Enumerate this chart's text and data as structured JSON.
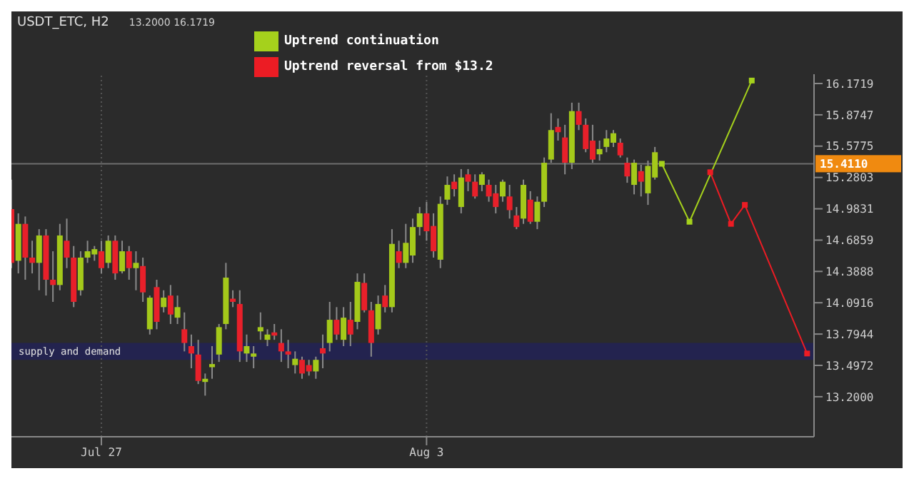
{
  "chart_data": {
    "type": "candlestick",
    "title": "USDT_ETC, H2",
    "subtitle": "13.2000 16.1719",
    "categories": [
      null,
      null,
      null,
      null,
      null,
      null,
      null,
      null,
      null,
      null,
      null,
      null,
      null,
      "Jul 27",
      null,
      null,
      null,
      null,
      null,
      null,
      null,
      null,
      null,
      null,
      null,
      null,
      null,
      null,
      null,
      null,
      null,
      null,
      null,
      null,
      null,
      null,
      null,
      null,
      null,
      null,
      null,
      null,
      null,
      null,
      null,
      null,
      null,
      null,
      null,
      null,
      null,
      null,
      null,
      null,
      null,
      null,
      null,
      null,
      null,
      null,
      "Aug 3",
      null,
      null,
      null,
      null,
      null,
      null,
      null,
      null,
      null,
      null,
      null,
      null,
      null,
      null,
      null,
      null,
      null,
      null,
      null,
      null,
      null,
      null,
      null,
      null,
      null,
      null,
      null,
      null,
      null,
      null,
      null,
      null,
      null,
      null,
      null,
      null,
      null,
      null,
      null,
      null,
      null,
      null,
      null,
      null,
      null,
      null,
      null,
      null,
      null,
      null,
      null,
      null,
      null,
      null,
      null,
      null
    ],
    "ohlc": [
      [
        14.98,
        15.26,
        14.42,
        14.47
      ],
      [
        14.49,
        14.94,
        14.37,
        14.84
      ],
      [
        14.84,
        14.91,
        14.31,
        14.52
      ],
      [
        14.52,
        14.68,
        14.37,
        14.47
      ],
      [
        14.47,
        14.79,
        14.21,
        14.73
      ],
      [
        14.73,
        14.79,
        14.16,
        14.31
      ],
      [
        14.31,
        14.58,
        14.1,
        14.26
      ],
      [
        14.26,
        14.84,
        14.21,
        14.73
      ],
      [
        14.68,
        14.89,
        14.42,
        14.52
      ],
      [
        14.52,
        14.63,
        14.05,
        14.1
      ],
      [
        14.21,
        14.58,
        14.16,
        14.52
      ],
      [
        14.52,
        14.68,
        14.47,
        14.58
      ],
      [
        14.55,
        14.63,
        14.49,
        14.6
      ],
      [
        14.58,
        14.68,
        14.37,
        14.42
      ],
      [
        14.47,
        14.73,
        14.42,
        14.68
      ],
      [
        14.68,
        14.73,
        14.31,
        14.37
      ],
      [
        14.39,
        14.68,
        14.37,
        14.58
      ],
      [
        14.58,
        14.63,
        14.31,
        14.42
      ],
      [
        14.42,
        14.58,
        14.21,
        14.47
      ],
      [
        14.44,
        14.52,
        14.1,
        14.19
      ],
      [
        13.84,
        14.16,
        13.79,
        14.14
      ],
      [
        14.24,
        14.31,
        13.84,
        13.91
      ],
      [
        14.05,
        14.21,
        14.0,
        14.14
      ],
      [
        14.16,
        14.26,
        13.89,
        13.98
      ],
      [
        13.95,
        14.16,
        13.89,
        14.05
      ],
      [
        13.84,
        14.0,
        13.63,
        13.71
      ],
      [
        13.68,
        13.79,
        13.47,
        13.61
      ],
      [
        13.6,
        13.74,
        13.32,
        13.35
      ],
      [
        13.34,
        13.42,
        13.21,
        13.37
      ],
      [
        13.48,
        13.68,
        13.37,
        13.51
      ],
      [
        13.6,
        13.89,
        13.53,
        13.86
      ],
      [
        13.89,
        14.47,
        13.84,
        14.33
      ],
      [
        14.13,
        14.21,
        14.05,
        14.1
      ],
      [
        14.08,
        14.21,
        13.53,
        13.63
      ],
      [
        13.61,
        13.79,
        13.53,
        13.68
      ],
      [
        13.58,
        13.68,
        13.47,
        13.61
      ],
      [
        13.82,
        14.0,
        13.74,
        13.86
      ],
      [
        13.74,
        13.84,
        13.68,
        13.79
      ],
      [
        13.81,
        13.89,
        13.74,
        13.78
      ],
      [
        13.71,
        13.84,
        13.53,
        13.63
      ],
      [
        13.63,
        13.74,
        13.47,
        13.6
      ],
      [
        13.5,
        13.63,
        13.42,
        13.56
      ],
      [
        13.55,
        13.58,
        13.37,
        13.42
      ],
      [
        13.5,
        13.55,
        13.4,
        13.44
      ],
      [
        13.44,
        13.58,
        13.37,
        13.55
      ],
      [
        13.66,
        13.79,
        13.47,
        13.61
      ],
      [
        13.71,
        14.1,
        13.63,
        13.93
      ],
      [
        13.93,
        14.05,
        13.74,
        13.79
      ],
      [
        13.74,
        14.05,
        13.68,
        13.95
      ],
      [
        13.93,
        14.1,
        13.68,
        13.79
      ],
      [
        13.91,
        14.37,
        13.84,
        14.29
      ],
      [
        14.28,
        14.37,
        14.0,
        14.02
      ],
      [
        14.02,
        14.1,
        13.58,
        13.71
      ],
      [
        13.84,
        14.16,
        13.79,
        14.08
      ],
      [
        14.16,
        14.26,
        14.0,
        14.05
      ],
      [
        14.05,
        14.79,
        14.0,
        14.65
      ],
      [
        14.58,
        14.68,
        14.42,
        14.47
      ],
      [
        14.47,
        14.84,
        14.42,
        14.66
      ],
      [
        14.54,
        14.89,
        14.47,
        14.81
      ],
      [
        14.81,
        15.0,
        14.73,
        14.94
      ],
      [
        14.94,
        15.05,
        14.68,
        14.77
      ],
      [
        14.82,
        14.94,
        14.52,
        14.58
      ],
      [
        14.5,
        15.1,
        14.42,
        15.03
      ],
      [
        15.07,
        15.29,
        15.02,
        15.21
      ],
      [
        15.24,
        15.31,
        15.1,
        15.17
      ],
      [
        15.0,
        15.36,
        14.94,
        15.28
      ],
      [
        15.31,
        15.36,
        15.15,
        15.24
      ],
      [
        15.24,
        15.31,
        15.08,
        15.1
      ],
      [
        15.21,
        15.33,
        15.15,
        15.31
      ],
      [
        15.21,
        15.26,
        15.05,
        15.1
      ],
      [
        15.13,
        15.21,
        14.94,
        15.0
      ],
      [
        15.1,
        15.26,
        15.05,
        15.24
      ],
      [
        15.1,
        15.21,
        14.89,
        14.97
      ],
      [
        14.92,
        15.0,
        14.79,
        14.81
      ],
      [
        14.89,
        15.26,
        14.84,
        15.21
      ],
      [
        15.07,
        15.15,
        14.84,
        14.86
      ],
      [
        14.86,
        15.1,
        14.79,
        15.05
      ],
      [
        15.05,
        15.47,
        15.0,
        15.42
      ],
      [
        15.45,
        15.89,
        15.42,
        15.73
      ],
      [
        15.76,
        15.84,
        15.63,
        15.71
      ],
      [
        15.66,
        15.78,
        15.31,
        15.42
      ],
      [
        15.42,
        15.99,
        15.36,
        15.91
      ],
      [
        15.91,
        15.99,
        15.73,
        15.78
      ],
      [
        15.78,
        15.84,
        15.52,
        15.55
      ],
      [
        15.63,
        15.78,
        15.42,
        15.45
      ],
      [
        15.5,
        15.63,
        15.44,
        15.55
      ],
      [
        15.57,
        15.73,
        15.52,
        15.65
      ],
      [
        15.61,
        15.73,
        15.57,
        15.7
      ],
      [
        15.61,
        15.65,
        15.47,
        15.49
      ],
      [
        15.42,
        15.47,
        15.23,
        15.29
      ],
      [
        15.21,
        15.45,
        15.12,
        15.42
      ],
      [
        15.34,
        15.4,
        15.1,
        15.24
      ],
      [
        15.13,
        15.44,
        15.02,
        15.39
      ],
      [
        15.28,
        15.57,
        15.26,
        15.52
      ],
      null,
      null,
      null,
      null,
      null,
      null,
      null,
      null,
      null,
      null,
      null,
      null,
      null,
      null,
      null,
      null,
      null,
      null,
      null,
      null,
      null,
      null,
      null
    ],
    "colors": [
      "#e8202a",
      "#a4c91a",
      "#e8202a",
      "#e8202a",
      "#a4c91a",
      "#e8202a",
      "#e8202a",
      "#a4c91a",
      "#e8202a",
      "#e8202a",
      "#a4c91a",
      "#a4c91a",
      "#a4c91a",
      "#e8202a",
      "#a4c91a",
      "#e8202a",
      "#a4c91a",
      "#e8202a",
      "#a4c91a",
      "#e8202a",
      "#a4c91a",
      "#e8202a",
      "#a4c91a",
      "#e8202a",
      "#a4c91a",
      "#e8202a",
      "#e8202a",
      "#e8202a",
      "#a4c91a",
      "#a4c91a",
      "#a4c91a",
      "#a4c91a",
      "#e8202a",
      "#e8202a",
      "#a4c91a",
      "#a4c91a",
      "#a4c91a",
      "#a4c91a",
      "#e8202a",
      "#e8202a",
      "#e8202a",
      "#a4c91a",
      "#e8202a",
      "#e8202a",
      "#a4c91a",
      "#e8202a",
      "#a4c91a",
      "#e8202a",
      "#a4c91a",
      "#e8202a",
      "#a4c91a",
      "#e8202a",
      "#e8202a",
      "#a4c91a",
      "#e8202a",
      "#a4c91a",
      "#e8202a",
      "#a4c91a",
      "#a4c91a",
      "#a4c91a",
      "#e8202a",
      "#e8202a",
      "#a4c91a",
      "#a4c91a",
      "#e8202a",
      "#a4c91a",
      "#e8202a",
      "#e8202a",
      "#a4c91a",
      "#e8202a",
      "#e8202a",
      "#a4c91a",
      "#e8202a",
      "#e8202a",
      "#a4c91a",
      "#e8202a",
      "#a4c91a",
      "#a4c91a",
      "#a4c91a",
      "#e8202a",
      "#e8202a",
      "#a4c91a",
      "#e8202a",
      "#e8202a",
      "#e8202a",
      "#a4c91a",
      "#a4c91a",
      "#a4c91a",
      "#e8202a",
      "#e8202a",
      "#a4c91a",
      "#e8202a",
      "#a4c91a",
      "#a4c91a",
      null,
      null,
      null,
      null,
      null,
      null,
      null,
      null,
      null,
      null,
      null,
      null,
      null,
      null,
      null,
      null,
      null,
      null,
      null,
      null,
      null,
      null,
      null
    ],
    "series": [
      {
        "type": "line",
        "name": "Uptrend continuation",
        "color": "#a5d11c",
        "values": [
          null,
          null,
          null,
          null,
          null,
          null,
          null,
          null,
          null,
          null,
          null,
          null,
          null,
          null,
          null,
          null,
          null,
          null,
          null,
          null,
          null,
          null,
          null,
          null,
          null,
          null,
          null,
          null,
          null,
          null,
          null,
          null,
          null,
          null,
          null,
          null,
          null,
          null,
          null,
          null,
          null,
          null,
          null,
          null,
          null,
          null,
          null,
          null,
          null,
          null,
          null,
          null,
          null,
          null,
          null,
          null,
          null,
          null,
          null,
          null,
          null,
          null,
          null,
          null,
          null,
          null,
          null,
          null,
          null,
          null,
          null,
          null,
          null,
          null,
          null,
          null,
          null,
          null,
          null,
          null,
          null,
          null,
          null,
          null,
          null,
          null,
          null,
          null,
          null,
          null,
          null,
          null,
          null,
          null,
          15.41,
          null,
          null,
          null,
          14.86,
          null,
          null,
          null,
          null,
          null,
          null,
          null,
          null,
          16.2,
          null,
          null,
          null,
          null,
          null,
          null,
          null,
          null,
          null
        ]
      },
      {
        "type": "line",
        "name": "Uptrend reversal from $13.2",
        "color": "#ec1c24",
        "values": [
          null,
          null,
          null,
          null,
          null,
          null,
          null,
          null,
          null,
          null,
          null,
          null,
          null,
          null,
          null,
          null,
          null,
          null,
          null,
          null,
          null,
          null,
          null,
          null,
          null,
          null,
          null,
          null,
          null,
          null,
          null,
          null,
          null,
          null,
          null,
          null,
          null,
          null,
          null,
          null,
          null,
          null,
          null,
          null,
          null,
          null,
          null,
          null,
          null,
          null,
          null,
          null,
          null,
          null,
          null,
          null,
          null,
          null,
          null,
          null,
          null,
          null,
          null,
          null,
          null,
          null,
          null,
          null,
          null,
          null,
          null,
          null,
          null,
          null,
          null,
          null,
          null,
          null,
          null,
          null,
          null,
          null,
          null,
          null,
          null,
          null,
          null,
          null,
          null,
          null,
          null,
          null,
          null,
          null,
          null,
          null,
          null,
          null,
          null,
          null,
          null,
          15.33,
          null,
          null,
          14.84,
          null,
          15.02,
          null,
          null,
          null,
          null,
          null,
          null,
          null,
          null,
          13.61,
          null
        ]
      }
    ],
    "ylim": [
      12.82,
      16.26
    ],
    "yticks": [
      16.1719,
      15.8747,
      15.5775,
      15.2803,
      14.9831,
      14.6859,
      14.3888,
      14.0916,
      13.7944,
      13.4972,
      {
        "value": 13.2,
        "label": "13.2000"
      }
    ],
    "bands": [
      {
        "axis": "y",
        "from": 13.55,
        "to": 13.71,
        "label": "supply and demand",
        "color": "#23234f"
      }
    ],
    "ref_lines": [
      {
        "axis": "y",
        "value": 15.411,
        "label": "15.4110",
        "color": "#6e6e6e"
      }
    ],
    "grid": "x",
    "legend": "top",
    "marker": "square",
    "line_style": "solid"
  }
}
